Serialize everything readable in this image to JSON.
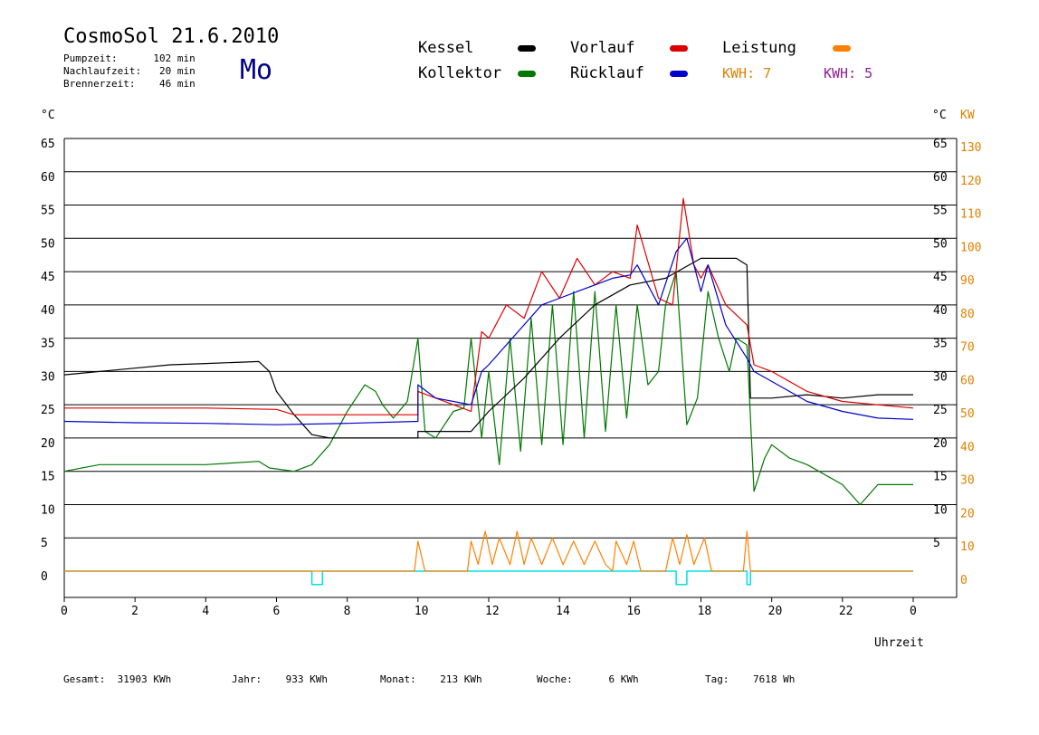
{
  "header": {
    "title": "CosmoSol 21.6.2010",
    "pumpzeit": "Pumpzeit:      102 min",
    "nachlaufzeit": "Nachlaufzeit:   20 min",
    "brennerzeit": "Brennerzeit:    46 min",
    "day": "Mo"
  },
  "legend": {
    "kessel": "Kessel",
    "kollektor": "Kollektor",
    "vorlauf": "Vorlauf",
    "ruecklauf": "Rücklauf",
    "leistung": "Leistung",
    "kwh_a": "KWH: 7",
    "kwh_b": "KWH: 5",
    "colors": {
      "kessel": "#000000",
      "kollektor": "#007700",
      "vorlauf": "#dd0000",
      "ruecklauf": "#0000cc",
      "leistung": "#ff8000",
      "kwh_a": "#e08000",
      "kwh_b": "#8b2090",
      "pump": "#00e0e0"
    }
  },
  "footer": {
    "gesamt": "Gesamt:  31903 KWh",
    "jahr": "Jahr:    933 KWh",
    "monat": "Monat:    213 KWh",
    "woche": "Woche:      6 KWh",
    "tag": "Tag:    7618 Wh"
  },
  "chart_data": {
    "type": "line",
    "xlabel": "Uhrzeit",
    "ylabel_left": "°C",
    "ylabel_right_c": "°C",
    "ylabel_right_kw": "KW",
    "x_ticks": [
      "0",
      "2",
      "4",
      "6",
      "8",
      "10",
      "12",
      "14",
      "16",
      "18",
      "20",
      "22",
      "0"
    ],
    "y_ticks_left": [
      "0",
      "5",
      "10",
      "15",
      "20",
      "25",
      "30",
      "35",
      "40",
      "45",
      "50",
      "55",
      "60",
      "65"
    ],
    "y_ticks_right_c": [
      "5",
      "10",
      "15",
      "20",
      "25",
      "30",
      "35",
      "40",
      "45",
      "50",
      "55",
      "60",
      "65"
    ],
    "y_ticks_right_kw": [
      "0",
      "10",
      "20",
      "30",
      "40",
      "50",
      "60",
      "70",
      "80",
      "90",
      "100",
      "110",
      "120",
      "130"
    ],
    "ylim": [
      -4,
      65
    ],
    "xlim": [
      0,
      24
    ],
    "grid": true,
    "series": [
      {
        "name": "Kessel",
        "values": [
          [
            0,
            29.5
          ],
          [
            1,
            30
          ],
          [
            2,
            30.5
          ],
          [
            3,
            31
          ],
          [
            4,
            31.2
          ],
          [
            5.5,
            31.5
          ],
          [
            5.8,
            30
          ],
          [
            6,
            27
          ],
          [
            6.5,
            23.5
          ],
          [
            7,
            20.5
          ],
          [
            7.5,
            20
          ],
          [
            9,
            20
          ],
          [
            10,
            20
          ],
          [
            10,
            21
          ],
          [
            11.5,
            21
          ],
          [
            12,
            24
          ],
          [
            13,
            29
          ],
          [
            14,
            35
          ],
          [
            15,
            40
          ],
          [
            16,
            43
          ],
          [
            17,
            44
          ],
          [
            18,
            47
          ],
          [
            19,
            47
          ],
          [
            19.3,
            46
          ],
          [
            19.4,
            26
          ],
          [
            20,
            26
          ],
          [
            21,
            26.5
          ],
          [
            22,
            26
          ],
          [
            23,
            26.5
          ],
          [
            24,
            26.5
          ]
        ]
      },
      {
        "name": "Kollektor",
        "values": [
          [
            0,
            15
          ],
          [
            1,
            16
          ],
          [
            2,
            16
          ],
          [
            3,
            16
          ],
          [
            4,
            16
          ],
          [
            5.5,
            16.5
          ],
          [
            5.8,
            15.5
          ],
          [
            6.5,
            15
          ],
          [
            7,
            16
          ],
          [
            7.5,
            19
          ],
          [
            8,
            24
          ],
          [
            8.5,
            28
          ],
          [
            8.8,
            27
          ],
          [
            9,
            25
          ],
          [
            9.3,
            23
          ],
          [
            9.7,
            25.5
          ],
          [
            10,
            35
          ],
          [
            10.2,
            21
          ],
          [
            10.5,
            20
          ],
          [
            11,
            24
          ],
          [
            11.3,
            24.5
          ],
          [
            11.5,
            35
          ],
          [
            11.8,
            20
          ],
          [
            12,
            30
          ],
          [
            12.3,
            16
          ],
          [
            12.6,
            35
          ],
          [
            12.9,
            18
          ],
          [
            13.2,
            38
          ],
          [
            13.5,
            19
          ],
          [
            13.8,
            40
          ],
          [
            14.1,
            19
          ],
          [
            14.4,
            42
          ],
          [
            14.7,
            20
          ],
          [
            15,
            42
          ],
          [
            15.3,
            21
          ],
          [
            15.6,
            40
          ],
          [
            15.9,
            23
          ],
          [
            16.2,
            40
          ],
          [
            16.5,
            28
          ],
          [
            16.8,
            30
          ],
          [
            17,
            40
          ],
          [
            17.3,
            45
          ],
          [
            17.6,
            22
          ],
          [
            17.9,
            26
          ],
          [
            18.2,
            42
          ],
          [
            18.5,
            35
          ],
          [
            18.8,
            30
          ],
          [
            19,
            35
          ],
          [
            19.3,
            34
          ],
          [
            19.5,
            12
          ],
          [
            19.8,
            17
          ],
          [
            20,
            19
          ],
          [
            20.5,
            17
          ],
          [
            21,
            16
          ],
          [
            22,
            13
          ],
          [
            22.5,
            10
          ],
          [
            23,
            13
          ],
          [
            24,
            13
          ]
        ]
      },
      {
        "name": "Vorlauf",
        "values": [
          [
            0,
            24.5
          ],
          [
            2,
            24.5
          ],
          [
            4,
            24.5
          ],
          [
            6,
            24.3
          ],
          [
            6.5,
            23.5
          ],
          [
            8,
            23.5
          ],
          [
            10,
            23.5
          ],
          [
            10,
            27
          ],
          [
            11.5,
            24
          ],
          [
            11.8,
            36
          ],
          [
            12,
            35
          ],
          [
            12.5,
            40
          ],
          [
            13,
            38
          ],
          [
            13.5,
            45
          ],
          [
            14,
            41
          ],
          [
            14.5,
            47
          ],
          [
            15,
            43
          ],
          [
            15.5,
            45
          ],
          [
            16,
            44
          ],
          [
            16.2,
            52
          ],
          [
            16.8,
            41
          ],
          [
            17.2,
            40
          ],
          [
            17.5,
            56
          ],
          [
            17.8,
            46
          ],
          [
            18,
            44
          ],
          [
            18.2,
            46
          ],
          [
            18.7,
            40
          ],
          [
            19.3,
            37
          ],
          [
            19.5,
            31
          ],
          [
            20,
            30
          ],
          [
            21,
            27
          ],
          [
            22,
            25.5
          ],
          [
            23,
            25
          ],
          [
            24,
            24.5
          ]
        ]
      },
      {
        "name": "Rücklauf",
        "values": [
          [
            0,
            22.5
          ],
          [
            2,
            22.3
          ],
          [
            4,
            22.2
          ],
          [
            6,
            22
          ],
          [
            8,
            22.2
          ],
          [
            10,
            22.5
          ],
          [
            10,
            28
          ],
          [
            10.5,
            26
          ],
          [
            11.5,
            25
          ],
          [
            11.8,
            30
          ],
          [
            12,
            31
          ],
          [
            12.5,
            34
          ],
          [
            13,
            37
          ],
          [
            13.5,
            40
          ],
          [
            14,
            41
          ],
          [
            14.5,
            42
          ],
          [
            15,
            43
          ],
          [
            15.5,
            44
          ],
          [
            16,
            44.5
          ],
          [
            16.2,
            46
          ],
          [
            16.8,
            40
          ],
          [
            17.3,
            48
          ],
          [
            17.6,
            50
          ],
          [
            18,
            42
          ],
          [
            18.2,
            46
          ],
          [
            18.7,
            37
          ],
          [
            19.3,
            32
          ],
          [
            19.5,
            30
          ],
          [
            20,
            28.5
          ],
          [
            21,
            25.5
          ],
          [
            22,
            24
          ],
          [
            23,
            23
          ],
          [
            24,
            22.8
          ]
        ]
      },
      {
        "name": "Leistung",
        "values": [
          [
            0,
            0
          ],
          [
            9.9,
            0
          ],
          [
            10,
            4.5
          ],
          [
            10.2,
            0
          ],
          [
            11.4,
            0
          ],
          [
            11.5,
            4.5
          ],
          [
            11.7,
            1
          ],
          [
            11.9,
            6
          ],
          [
            12.1,
            1
          ],
          [
            12.3,
            5
          ],
          [
            12.6,
            1
          ],
          [
            12.8,
            6
          ],
          [
            13,
            1
          ],
          [
            13.2,
            5
          ],
          [
            13.5,
            1
          ],
          [
            13.8,
            5
          ],
          [
            14.1,
            1
          ],
          [
            14.4,
            4.5
          ],
          [
            14.7,
            1
          ],
          [
            15,
            4.5
          ],
          [
            15.3,
            1
          ],
          [
            15.5,
            0
          ],
          [
            15.6,
            4.5
          ],
          [
            15.9,
            1
          ],
          [
            16.1,
            4.5
          ],
          [
            16.3,
            0
          ],
          [
            17,
            0
          ],
          [
            17.2,
            5
          ],
          [
            17.4,
            1
          ],
          [
            17.6,
            5.5
          ],
          [
            17.8,
            1
          ],
          [
            18.1,
            5
          ],
          [
            18.3,
            0
          ],
          [
            19.2,
            0
          ],
          [
            19.3,
            6
          ],
          [
            19.4,
            0
          ],
          [
            24,
            0
          ]
        ]
      },
      {
        "name": "Pumpe",
        "values": [
          [
            0,
            0
          ],
          [
            7,
            0
          ],
          [
            7,
            -2
          ],
          [
            7.3,
            -2
          ],
          [
            7.3,
            0
          ],
          [
            17.3,
            0
          ],
          [
            17.3,
            -2
          ],
          [
            17.6,
            -2
          ],
          [
            17.6,
            0
          ],
          [
            19.3,
            0
          ],
          [
            19.3,
            -2
          ],
          [
            19.4,
            -2
          ],
          [
            19.4,
            0
          ],
          [
            24,
            0
          ]
        ]
      }
    ]
  }
}
